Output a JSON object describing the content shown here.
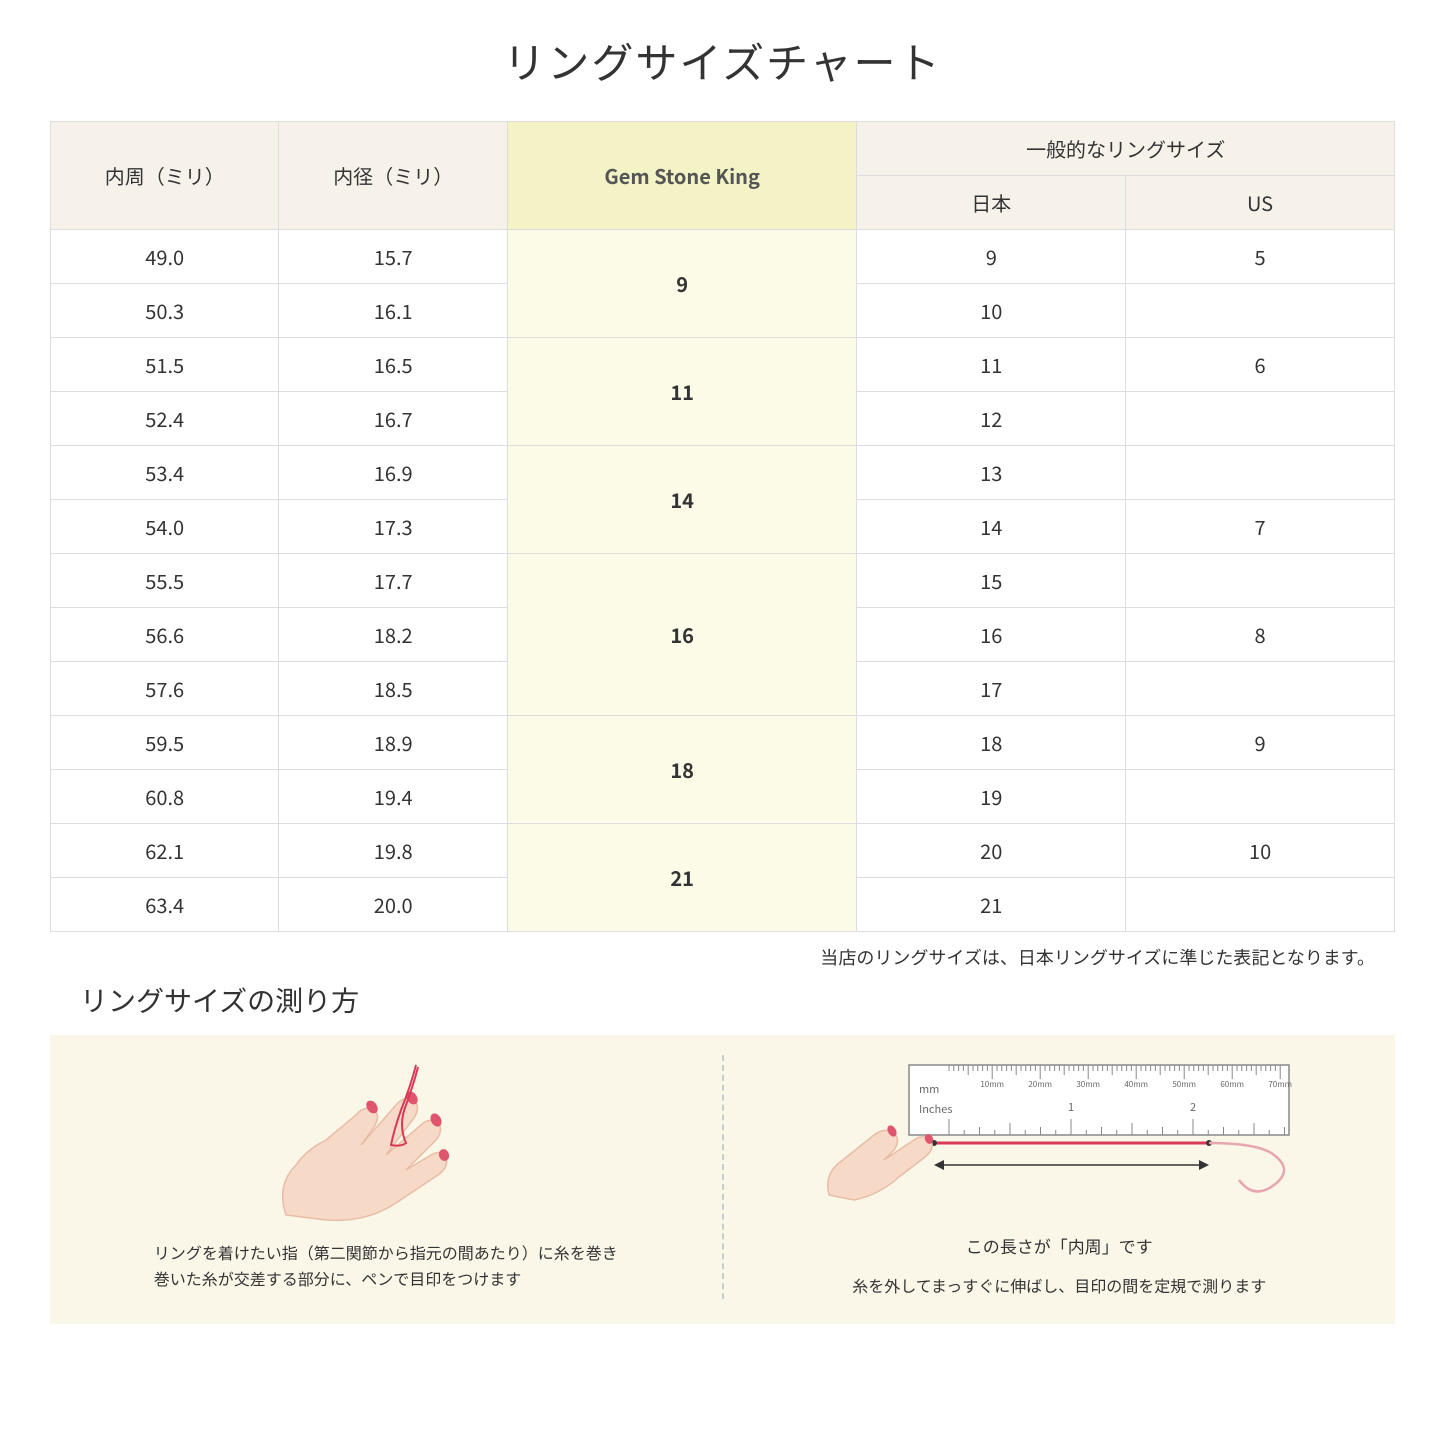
{
  "title": "リングサイズチャート",
  "table": {
    "headers": {
      "naishu": "内周（ミリ）",
      "naikei": "内径（ミリ）",
      "gsk": "Gem Stone King",
      "general": "一般的なリングサイズ",
      "jp": "日本",
      "us": "US"
    },
    "groups": [
      {
        "gsk": "9",
        "rows": [
          {
            "naishu": "49.0",
            "naikei": "15.7",
            "jp": "9",
            "us": "5"
          },
          {
            "naishu": "50.3",
            "naikei": "16.1",
            "jp": "10",
            "us": ""
          }
        ]
      },
      {
        "gsk": "11",
        "rows": [
          {
            "naishu": "51.5",
            "naikei": "16.5",
            "jp": "11",
            "us": "6"
          },
          {
            "naishu": "52.4",
            "naikei": "16.7",
            "jp": "12",
            "us": ""
          }
        ]
      },
      {
        "gsk": "14",
        "rows": [
          {
            "naishu": "53.4",
            "naikei": "16.9",
            "jp": "13",
            "us": ""
          },
          {
            "naishu": "54.0",
            "naikei": "17.3",
            "jp": "14",
            "us": "7"
          }
        ]
      },
      {
        "gsk": "16",
        "rows": [
          {
            "naishu": "55.5",
            "naikei": "17.7",
            "jp": "15",
            "us": ""
          },
          {
            "naishu": "56.6",
            "naikei": "18.2",
            "jp": "16",
            "us": "8"
          },
          {
            "naishu": "57.6",
            "naikei": "18.5",
            "jp": "17",
            "us": ""
          }
        ]
      },
      {
        "gsk": "18",
        "rows": [
          {
            "naishu": "59.5",
            "naikei": "18.9",
            "jp": "18",
            "us": "9"
          },
          {
            "naishu": "60.8",
            "naikei": "19.4",
            "jp": "19",
            "us": ""
          }
        ]
      },
      {
        "gsk": "21",
        "rows": [
          {
            "naishu": "62.1",
            "naikei": "19.8",
            "jp": "20",
            "us": "10"
          },
          {
            "naishu": "63.4",
            "naikei": "20.0",
            "jp": "21",
            "us": ""
          }
        ]
      }
    ]
  },
  "note": "当店のリングサイズは、日本リングサイズに準じた表記となります。",
  "howto_title": "リングサイズの測り方",
  "howto": {
    "step1": "リングを着けたい指（第二関節から指元の間あたり）に糸を巻き\n巻いた糸が交差する部分に、ペンで目印をつけます",
    "step2_label": "この長さが「内周」です",
    "step2": "糸を外してまっすぐに伸ばし、目印の間を定規で測ります",
    "ruler": {
      "mm_label": "mm",
      "inches_label": "Inches",
      "mm_ticks": [
        "10mm",
        "20mm",
        "30mm",
        "40mm",
        "50mm",
        "60mm",
        "70mm"
      ],
      "inch_ticks": [
        "1",
        "2"
      ]
    }
  },
  "colors": {
    "header_bg": "#f6f2ea",
    "highlight_header_bg": "#f3f3c6",
    "highlight_cell_bg": "#fbfbe8",
    "howto_bg": "#faf6e8",
    "skin": "#f7d9c8",
    "skin_dark": "#e8bda6",
    "nail": "#e0556e",
    "thread": "#d83a56",
    "ruler_stroke": "#888"
  }
}
